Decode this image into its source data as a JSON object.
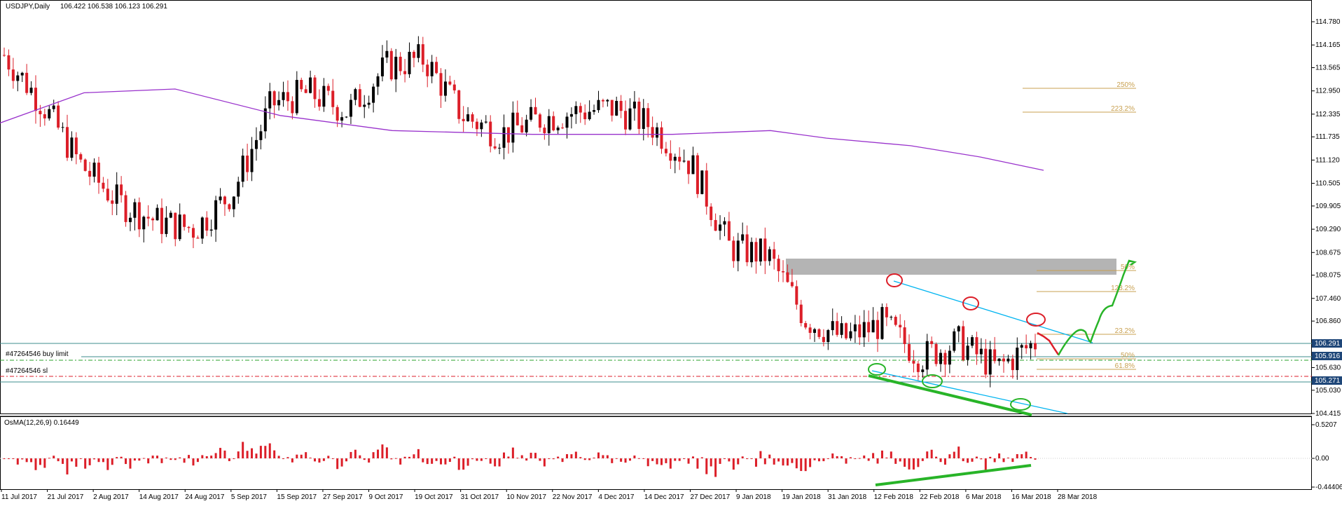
{
  "main_pane": {
    "title": "USDJPY,Daily",
    "ohlc": "106.422 106.538 106.123 106.291",
    "price_ticks": [
      "114.780",
      "114.165",
      "113.565",
      "112.950",
      "112.335",
      "111.735",
      "111.120",
      "110.505",
      "109.905",
      "109.290",
      "108.675",
      "108.075",
      "107.460",
      "106.860",
      "106.245",
      "105.630",
      "105.030",
      "104.415"
    ],
    "current_price": "106.291",
    "tag_buy": "105.916",
    "tag_sl": "105.271",
    "order_labels": [
      "#47264546 buy limit",
      "#47264546 sl"
    ],
    "fib_top_labels": [
      "250%",
      "223.2%"
    ],
    "fib_labels": [
      "50%",
      "123.2%",
      "23.2%",
      "50%",
      "61.8%"
    ]
  },
  "sub_pane": {
    "title": "OsMA(12,26,9) 0.16449",
    "ticks": [
      "0.5207",
      "0.00",
      "-0.44406"
    ]
  },
  "date_labels": [
    "11 Jul 2017",
    "21 Jul 2017",
    "2 Aug 2017",
    "14 Aug 2017",
    "24 Aug 2017",
    "5 Sep 2017",
    "15 Sep 2017",
    "27 Sep 2017",
    "9 Oct 2017",
    "19 Oct 2017",
    "31 Oct 2017",
    "10 Nov 2017",
    "22 Nov 2017",
    "4 Dec 2017",
    "14 Dec 2017",
    "27 Dec 2017",
    "9 Jan 2018",
    "19 Jan 2018",
    "31 Jan 2018",
    "12 Feb 2018",
    "22 Feb 2018",
    "6 Mar 2018",
    "16 Mar 2018",
    "28 Mar 2018"
  ],
  "colors": {
    "bull": "#000000",
    "bear": "#dc1e28",
    "ma": "#9932cc",
    "channel": "#00b4f0",
    "fib": "#c8a050",
    "zone": "#b4b4b4",
    "arrow_up": "#28b428",
    "arrow_down": "#dc1e28",
    "level_line": "#3c8c8c",
    "buy_limit": "#28a028",
    "sl_line": "#dc1e28",
    "price_tag": "#1e4678"
  },
  "chart_data": {
    "type": "candlestick",
    "symbol": "USDJPY",
    "timeframe": "Daily",
    "price_range": [
      104.415,
      114.78
    ],
    "indicator": "OsMA(12,26,9)",
    "indicator_value": 0.16449,
    "indicator_range": [
      -0.44406,
      0.5207
    ],
    "dates": [
      "11 Jul 2017",
      "21 Jul 2017",
      "2 Aug 2017",
      "14 Aug 2017",
      "24 Aug 2017",
      "5 Sep 2017",
      "15 Sep 2017",
      "27 Sep 2017",
      "9 Oct 2017",
      "19 Oct 2017",
      "31 Oct 2017",
      "10 Nov 2017",
      "22 Nov 2017",
      "4 Dec 2017",
      "14 Dec 2017",
      "27 Dec 2017",
      "9 Jan 2018",
      "19 Jan 2018",
      "31 Jan 2018",
      "12 Feb 2018",
      "22 Feb 2018",
      "6 Mar 2018",
      "16 Mar 2018",
      "28 Mar 2018"
    ],
    "close_trend": [
      113.9,
      112.6,
      111.0,
      110.0,
      109.5,
      109.3,
      110.3,
      112.6,
      112.9,
      112.4,
      113.6,
      113.8,
      112.3,
      111.8,
      112.2,
      112.4,
      112.5,
      112.0,
      111.0,
      108.8,
      108.6,
      106.9,
      106.4,
      106.8,
      105.9,
      106.3,
      105.6,
      106.3
    ],
    "current_price": 106.291,
    "buy_limit_level": 105.916,
    "stop_loss_level": 105.271,
    "resistance_zone": [
      108.07,
      108.5
    ]
  }
}
